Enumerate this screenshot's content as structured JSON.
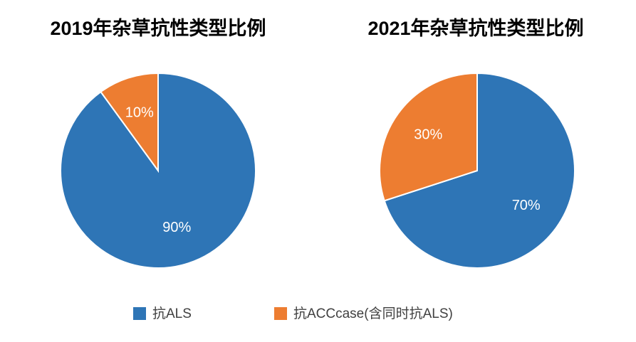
{
  "chart_data": [
    {
      "type": "pie",
      "title": "2019年杂草抗性类型比例",
      "values": [
        90,
        10
      ],
      "value_labels": [
        "90%",
        "10%"
      ],
      "colors": [
        "#2e75b6",
        "#ed7d31"
      ]
    },
    {
      "type": "pie",
      "title": "2021年杂草抗性类型比例",
      "values": [
        70,
        30
      ],
      "value_labels": [
        "70%",
        "30%"
      ],
      "colors": [
        "#2e75b6",
        "#ed7d31"
      ]
    }
  ],
  "legend": {
    "labels": [
      "抗ALS",
      "抗ACCcase(含同时抗ALS)"
    ]
  }
}
